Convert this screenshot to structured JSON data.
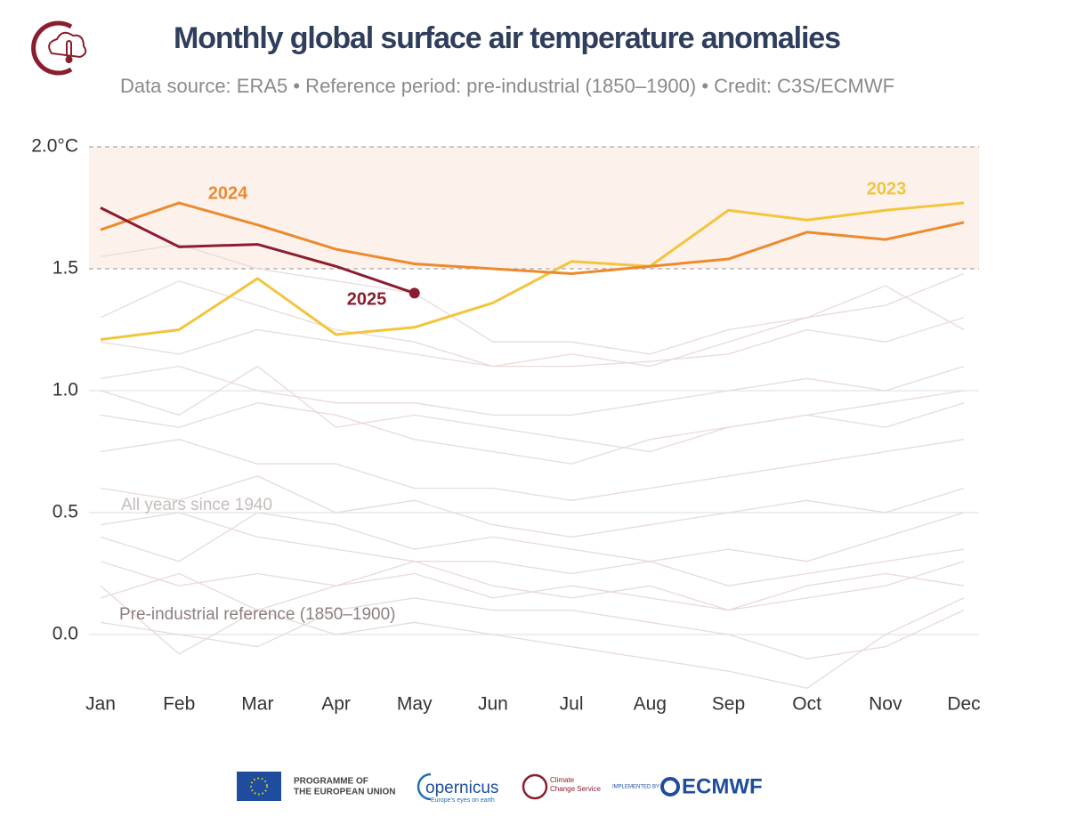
{
  "chart_data": {
    "type": "line",
    "title": "Monthly global surface air temperature anomalies",
    "subtitle": "Data source: ERA5 • Reference period: pre-industrial (1850–1900) • Credit: C3S/ECMWF",
    "categories": [
      "Jan",
      "Feb",
      "Mar",
      "Apr",
      "May",
      "Jun",
      "Jul",
      "Aug",
      "Sep",
      "Oct",
      "Nov",
      "Dec"
    ],
    "ylim": [
      -0.25,
      2
    ],
    "yticks": [
      {
        "value": 0,
        "label": "0.0"
      },
      0.5,
      {
        "value": 1,
        "label": "1.0"
      },
      1.5,
      {
        "value": 2,
        "label": "2.0°C"
      }
    ],
    "highlight_band": [
      1.5,
      2
    ],
    "band_color": "#fdf1ec",
    "grid": true,
    "annotations": [
      "All years since 1940",
      "Pre-industrial reference (1850–1900)"
    ],
    "series": [
      {
        "color": "#e8dbd9",
        "values": [
          0.05,
          0.0,
          -0.05,
          0.1,
          0.15,
          0.1,
          0.1,
          0.05,
          0.0,
          -0.1,
          -0.05,
          0.1
        ]
      },
      {
        "color": "#e8dbd9",
        "values": [
          0.3,
          0.2,
          0.25,
          0.2,
          0.3,
          0.2,
          0.15,
          0.2,
          0.1,
          0.15,
          0.2,
          0.3
        ]
      },
      {
        "color": "#e8dbd9",
        "values": [
          0.45,
          0.5,
          0.4,
          0.35,
          0.3,
          0.3,
          0.25,
          0.3,
          0.2,
          0.25,
          0.3,
          0.35
        ]
      },
      {
        "color": "#e8dbd9",
        "values": [
          0.6,
          0.55,
          0.65,
          0.5,
          0.55,
          0.45,
          0.4,
          0.45,
          0.5,
          0.55,
          0.5,
          0.6
        ]
      },
      {
        "color": "#e8dbd9",
        "values": [
          0.75,
          0.8,
          0.7,
          0.7,
          0.6,
          0.6,
          0.55,
          0.6,
          0.65,
          0.7,
          0.75,
          0.8
        ]
      },
      {
        "color": "#e8dbd9",
        "values": [
          0.9,
          0.85,
          0.95,
          0.9,
          0.8,
          0.75,
          0.7,
          0.8,
          0.85,
          0.9,
          0.85,
          0.95
        ]
      },
      {
        "color": "#e8dbd9",
        "values": [
          1.05,
          1.1,
          1.0,
          0.95,
          0.95,
          0.9,
          0.9,
          0.95,
          1.0,
          1.05,
          1.0,
          1.1
        ]
      },
      {
        "color": "#e8dbd9",
        "values": [
          1.2,
          1.15,
          1.25,
          1.2,
          1.15,
          1.1,
          1.1,
          1.12,
          1.15,
          1.25,
          1.2,
          1.3
        ]
      },
      {
        "color": "#e8dbd9",
        "values": [
          1.3,
          1.45,
          1.35,
          1.25,
          1.2,
          1.1,
          1.15,
          1.1,
          1.2,
          1.3,
          1.43,
          1.25
        ]
      },
      {
        "color": "#e8dbd9",
        "values": [
          0.2,
          -0.08,
          0.1,
          0.0,
          0.05,
          0.0,
          -0.05,
          -0.1,
          -0.15,
          -0.22,
          0.0,
          0.15
        ]
      },
      {
        "color": "#e8dbd9",
        "values": [
          0.4,
          0.3,
          0.5,
          0.45,
          0.35,
          0.4,
          0.35,
          0.3,
          0.35,
          0.3,
          0.4,
          0.5
        ]
      },
      {
        "color": "#e8dbd9",
        "values": [
          1.0,
          0.9,
          1.1,
          0.85,
          0.9,
          0.85,
          0.8,
          0.75,
          0.85,
          0.9,
          0.95,
          1.0
        ]
      },
      {
        "color": "#e8dbd9",
        "values": [
          0.15,
          0.25,
          0.1,
          0.2,
          0.25,
          0.15,
          0.2,
          0.15,
          0.1,
          0.2,
          0.25,
          0.2
        ]
      },
      {
        "color": "#e8dbd9",
        "values": [
          1.55,
          1.6,
          1.5,
          1.45,
          1.4,
          1.2,
          1.2,
          1.15,
          1.25,
          1.3,
          1.35,
          1.48
        ]
      },
      {
        "name": "2023",
        "color": "#f2c53d",
        "values": [
          1.21,
          1.25,
          1.46,
          1.23,
          1.26,
          1.36,
          1.53,
          1.51,
          1.74,
          1.7,
          1.74,
          1.77
        ]
      },
      {
        "name": "2024",
        "color": "#ec8a2e",
        "values": [
          1.66,
          1.77,
          1.68,
          1.58,
          1.52,
          1.5,
          1.48,
          1.51,
          1.54,
          1.65,
          1.62,
          1.69
        ]
      },
      {
        "name": "2025",
        "color": "#8b1e2e",
        "values": [
          1.75,
          1.59,
          1.6,
          1.51,
          1.4,
          null,
          null,
          null,
          null,
          null,
          null,
          null
        ]
      }
    ]
  },
  "footer": {
    "eu": "PROGRAMME OF",
    "eu2": "THE EUROPEAN UNION",
    "copernicus": "opernicus",
    "copernicus_tag": "Europe's eyes on earth",
    "c3s": "Climate",
    "c3s2": "Change Service",
    "implemented": "IMPLEMENTED BY",
    "ecmwf": "ECMWF"
  }
}
